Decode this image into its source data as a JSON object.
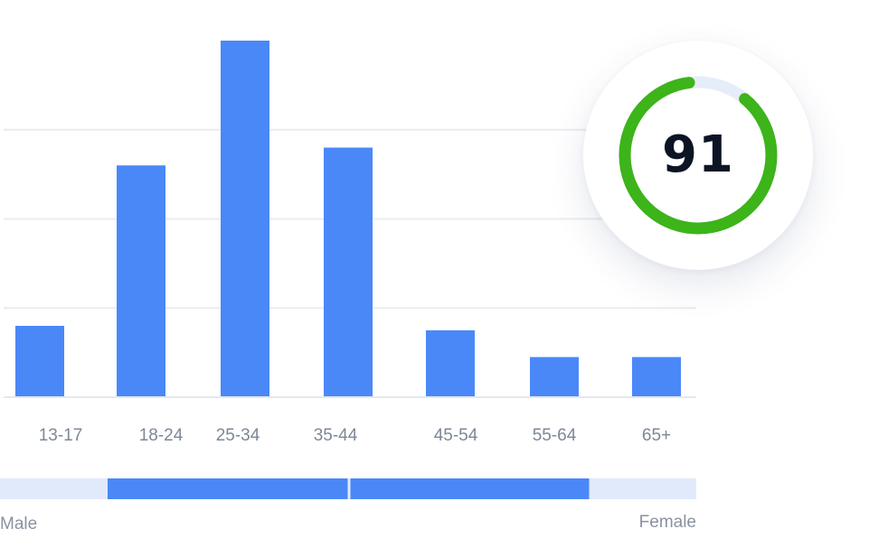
{
  "chart_data": {
    "type": "bar",
    "categories": [
      "13-17",
      "18-24",
      "25-34",
      "35-44",
      "45-54",
      "55-64",
      "65+"
    ],
    "values": [
      8,
      26,
      40,
      28,
      7.5,
      4.5,
      4.5
    ],
    "ylim": [
      0,
      40
    ],
    "grid": true,
    "bar_color": "#4a88f8",
    "grid_color": "#e9ecf1"
  },
  "gender": {
    "male_label": "Male",
    "female_label": "Female",
    "male_share": 0.5,
    "female_share": 0.5,
    "track_color": "#e1eafb",
    "fill_color": "#4a88f8"
  },
  "score": {
    "value": "91",
    "ring_color": "#3cb41a",
    "track_color": "#e6edfa"
  }
}
